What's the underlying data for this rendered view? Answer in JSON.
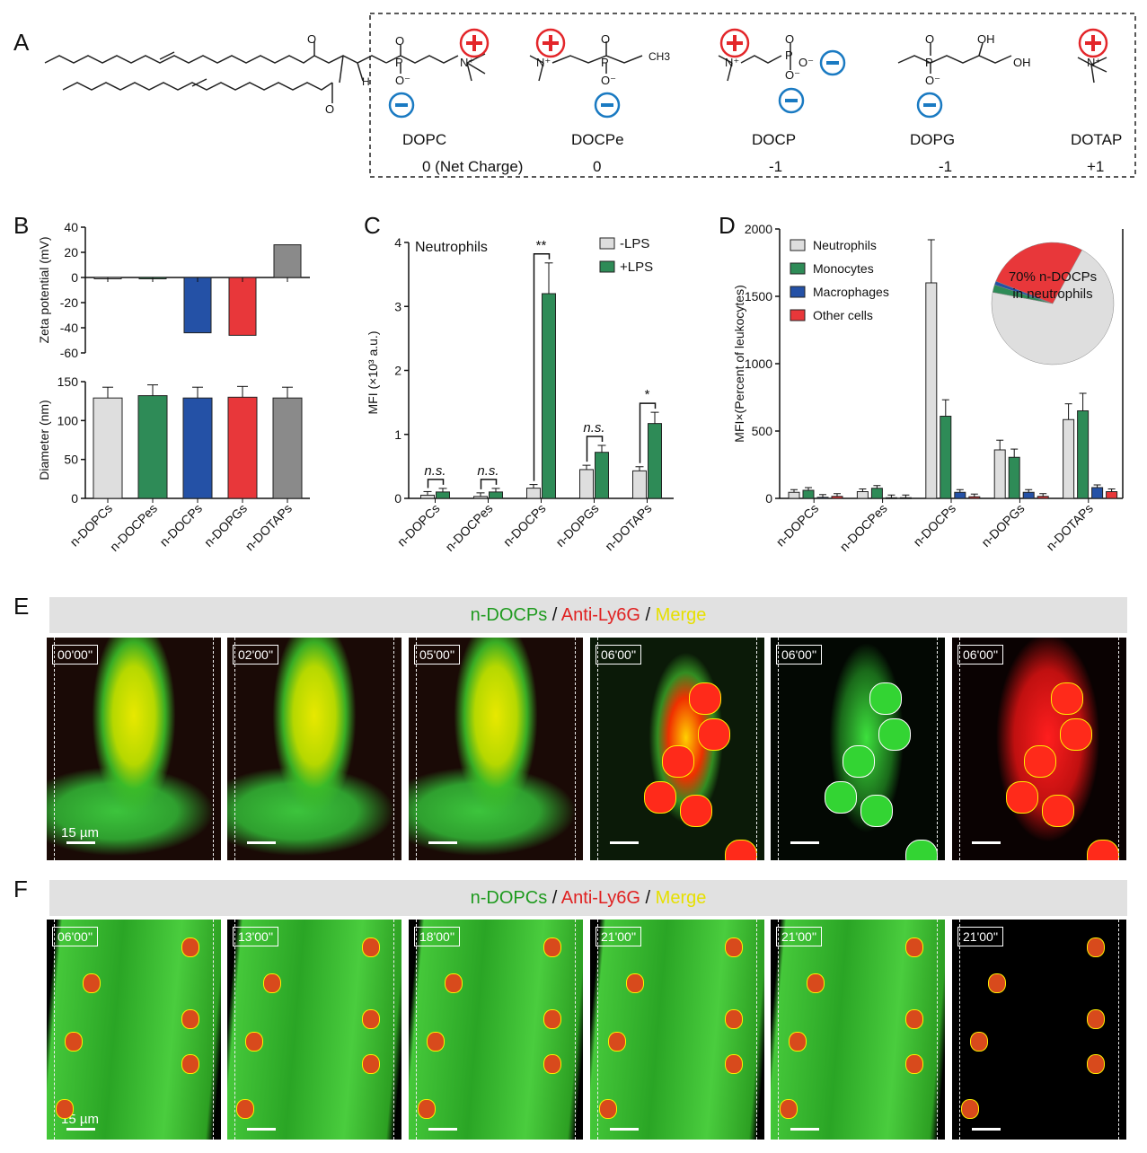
{
  "panel_letters": {
    "A": "A",
    "B": "B",
    "C": "C",
    "D": "D",
    "E": "E",
    "F": "F"
  },
  "molecules": [
    {
      "name": "DOPC",
      "charge": "0 (Net Charge)"
    },
    {
      "name": "DOCPe",
      "charge": "0"
    },
    {
      "name": "DOCP",
      "charge": "-1"
    },
    {
      "name": "DOPG",
      "charge": "-1"
    },
    {
      "name": "DOTAP",
      "charge": "+1"
    }
  ],
  "chem_labels": {
    "O": "O",
    "Om": "O⁻",
    "H": "H",
    "P": "P",
    "N": "N",
    "Np": "N⁺",
    "OH": "OH",
    "CH3": "CH3"
  },
  "colors": {
    "gray_light": "#dedede",
    "green": "#2e8b57",
    "blue": "#2451a6",
    "red": "#e8373a",
    "gray_dark": "#8a8a8a",
    "plus": "#e3262a",
    "minus": "#1a7ac2"
  },
  "chart_data": [
    {
      "id": "B-top",
      "type": "bar",
      "ylabel": "Zeta potential (mV)",
      "ylim": [
        -60,
        40
      ],
      "yticks": [
        "40",
        "20",
        "0",
        "-20",
        "-40",
        "-60"
      ],
      "categories": [
        "n-DOPCs",
        "n-DOCPes",
        "n-DOCPs",
        "n-DOPGs",
        "n-DOTAPs"
      ],
      "values": [
        -1,
        -1,
        -44,
        -46,
        26
      ]
    },
    {
      "id": "B-bottom",
      "type": "bar",
      "ylabel": "Diameter (nm)",
      "ylim": [
        0,
        150
      ],
      "yticks": [
        "150",
        "100",
        "50",
        "0"
      ],
      "categories": [
        "n-DOPCs",
        "n-DOCPes",
        "n-DOCPs",
        "n-DOPGs",
        "n-DOTAPs"
      ],
      "values": [
        129,
        132,
        129,
        130,
        129
      ]
    },
    {
      "id": "C",
      "type": "bar",
      "ylabel": "MFI (×10³ a.u.)",
      "ylim": [
        0,
        4
      ],
      "yticks": [
        "4",
        "3",
        "2",
        "1",
        "0"
      ],
      "title": "Neutrophils",
      "categories": [
        "n-DOPCs",
        "n-DOCPes",
        "n-DOCPs",
        "n-DOPGs",
        "n-DOTAPs"
      ],
      "series": [
        {
          "name": "-LPS",
          "values": [
            0.05,
            0.03,
            0.16,
            0.45,
            0.43
          ]
        },
        {
          "name": "+LPS",
          "values": [
            0.1,
            0.1,
            3.2,
            0.72,
            1.17
          ]
        }
      ],
      "significance": [
        "n.s.",
        "n.s.",
        "**",
        "n.s.",
        "*"
      ]
    },
    {
      "id": "D",
      "type": "bar",
      "ylabel": "MFI×(Percent of leukocytes)",
      "ylim": [
        0,
        2000
      ],
      "yticks": [
        "2000",
        "1500",
        "1000",
        "500",
        "0"
      ],
      "categories": [
        "n-DOPCs",
        "n-DOCPes",
        "n-DOCPs",
        "n-DOPGs",
        "n-DOTAPs"
      ],
      "series": [
        {
          "name": "Neutrophils",
          "values": [
            45,
            50,
            1600,
            360,
            585
          ]
        },
        {
          "name": "Monocytes",
          "values": [
            60,
            75,
            610,
            305,
            650
          ]
        },
        {
          "name": "Macrophages",
          "values": [
            8,
            5,
            45,
            45,
            80
          ]
        },
        {
          "name": "Other cells",
          "values": [
            15,
            5,
            12,
            15,
            50
          ]
        }
      ],
      "pie": {
        "label": "70% n-DOCPs in neutrophils",
        "values": [
          70,
          2,
          1,
          27
        ]
      }
    }
  ],
  "E": {
    "title_parts": [
      "n-DOCPs",
      " / ",
      "Anti-Ly6G",
      " / ",
      "Merge"
    ],
    "times": [
      "00'00''",
      "02'00''",
      "05'00''",
      "06'00''",
      "06'00''",
      "06'00''"
    ],
    "scale": "15 µm"
  },
  "F": {
    "title_parts": [
      "n-DOPCs",
      " / ",
      "Anti-Ly6G",
      " / ",
      "Merge"
    ],
    "times": [
      "06'00''",
      "13'00''",
      "18'00''",
      "21'00''",
      "21'00''",
      "21'00''"
    ],
    "scale": "15 µm"
  }
}
